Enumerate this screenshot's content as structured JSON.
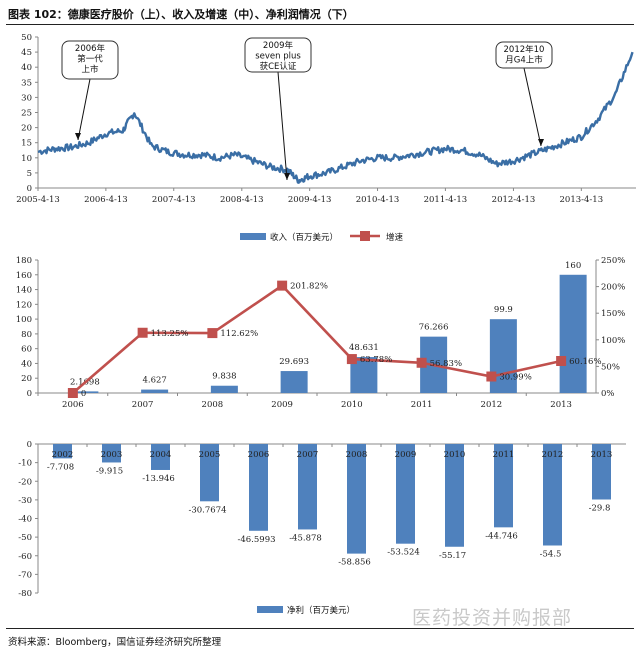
{
  "figure": {
    "title": "图表 102：德康医疗股价（上）、收入及增速（中）、净利润情况（下）",
    "source": "资料来源：Bloomberg，国信证券经济研究所整理",
    "watermark": "医药投资并购报部",
    "colors": {
      "line": "#3a6ea5",
      "bar": "#4f81bd",
      "growth": "#c0504d",
      "axis": "#888888"
    }
  },
  "chart_data": [
    {
      "type": "line",
      "id": "stock_price",
      "title": "",
      "xlabel": "",
      "ylabel": "",
      "xtick_labels": [
        "2005-4-13",
        "2006-4-13",
        "2007-4-13",
        "2008-4-13",
        "2009-4-13",
        "2010-4-13",
        "2011-4-13",
        "2012-4-13",
        "2013-4-13"
      ],
      "yticks": [
        0,
        5,
        10,
        15,
        20,
        25,
        30,
        35,
        40,
        45,
        50
      ],
      "ylim": [
        0,
        50
      ],
      "grid": false,
      "x": [
        "2005-04",
        "2005-07",
        "2005-10",
        "2006-01",
        "2006-04",
        "2006-07",
        "2006-09",
        "2006-12",
        "2007-03",
        "2007-06",
        "2007-09",
        "2007-12",
        "2008-03",
        "2008-06",
        "2008-09",
        "2008-12",
        "2009-02",
        "2009-04",
        "2009-07",
        "2009-10",
        "2010-01",
        "2010-04",
        "2010-07",
        "2010-10",
        "2011-01",
        "2011-04",
        "2011-07",
        "2011-10",
        "2012-01",
        "2012-04",
        "2012-07",
        "2012-10",
        "2013-01",
        "2013-04",
        "2013-07",
        "2013-10",
        "2014-01"
      ],
      "series": [
        {
          "values": [
            12,
            13,
            13.5,
            15,
            18,
            19,
            25,
            14,
            12,
            11,
            11,
            10,
            11,
            9,
            7,
            6,
            2.5,
            4,
            5,
            7,
            9,
            10,
            10,
            11,
            12,
            13,
            12.5,
            11,
            8,
            9,
            11,
            13,
            15,
            17,
            23,
            31,
            45
          ]
        }
      ],
      "annotations": [
        {
          "text": [
            "2006年",
            "第一代",
            "上市"
          ],
          "x": "2006-01"
        },
        {
          "text": [
            "2009年",
            "seven plus",
            "获CE认证"
          ],
          "x": "2009-02"
        },
        {
          "text": [
            "2012年10",
            "月G4上市"
          ],
          "x": "2012-10"
        }
      ]
    },
    {
      "type": "bar",
      "id": "revenue_growth",
      "categories": [
        "2006",
        "2007",
        "2008",
        "2009",
        "2010",
        "2011",
        "2012",
        "2013"
      ],
      "series": [
        {
          "name": "收入（百万美元）",
          "axis": "left",
          "type": "bar",
          "values": [
            2.1698,
            4.627,
            9.838,
            29.693,
            48.631,
            76.266,
            99.9,
            160
          ],
          "labels": [
            "2.1698",
            "4.627",
            "9.838",
            "29.693",
            "48.631",
            "76.266",
            "99.9",
            "160"
          ]
        },
        {
          "name": "增速",
          "axis": "right",
          "type": "line",
          "values": [
            0,
            113.25,
            112.62,
            201.82,
            63.78,
            56.83,
            30.99,
            60.16
          ],
          "labels": [
            "0",
            "113.25%",
            "112.62%",
            "201.82%",
            "63.78%",
            "56.83%",
            "30.99%",
            "60.16%"
          ]
        }
      ],
      "left_ticks": [
        "0",
        "20",
        "40",
        "60",
        "80",
        "100",
        "120",
        "140",
        "160",
        "180"
      ],
      "right_ticks": [
        "0%",
        "50%",
        "100%",
        "150%",
        "200%",
        "250%"
      ],
      "ylim_left": [
        0,
        180
      ],
      "ylim_right": [
        0,
        250
      ],
      "legend": "top-center"
    },
    {
      "type": "bar",
      "id": "net_income",
      "categories": [
        "2002",
        "2003",
        "2004",
        "2005",
        "2006",
        "2007",
        "2008",
        "2009",
        "2010",
        "2011",
        "2012",
        "2013"
      ],
      "series": [
        {
          "name": "净利（百万美元）",
          "values": [
            -7.708,
            -9.915,
            -13.946,
            -30.7674,
            -46.5993,
            -45.878,
            -58.856,
            -53.524,
            -55.17,
            -44.746,
            -54.5,
            -29.8
          ],
          "labels": [
            "-7.708",
            "-9.915",
            "-13.946",
            "-30.7674",
            "-46.5993",
            "-45.878",
            "-58.856",
            "-53.524",
            "-55.17",
            "-44.746",
            "-54.5",
            "-29.8"
          ]
        }
      ],
      "yticks": [
        "0",
        "-10",
        "-20",
        "-30",
        "-40",
        "-50",
        "-60",
        "-70",
        "-80"
      ],
      "ylim": [
        -80,
        0
      ],
      "legend": "bottom-center"
    }
  ]
}
